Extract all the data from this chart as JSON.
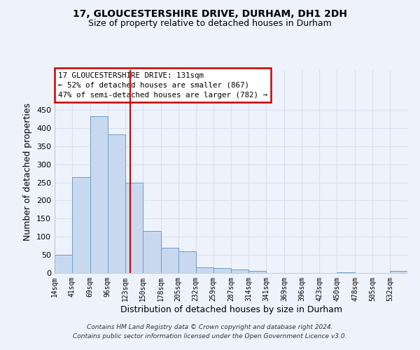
{
  "title1": "17, GLOUCESTERSHIRE DRIVE, DURHAM, DH1 2DH",
  "title2": "Size of property relative to detached houses in Durham",
  "xlabel": "Distribution of detached houses by size in Durham",
  "ylabel": "Number of detached properties",
  "annotation_lines": [
    "17 GLOUCESTERSHIRE DRIVE: 131sqm",
    "← 52% of detached houses are smaller (867)",
    "47% of semi-detached houses are larger (782) →"
  ],
  "footnote1": "Contains HM Land Registry data © Crown copyright and database right 2024.",
  "footnote2": "Contains public sector information licensed under the Open Government Licence v3.0.",
  "bar_edges": [
    14,
    41,
    69,
    96,
    123,
    150,
    178,
    205,
    232,
    259,
    287,
    314,
    341,
    369,
    396,
    423,
    450,
    478,
    505,
    532,
    559
  ],
  "bar_heights": [
    50,
    265,
    432,
    383,
    250,
    115,
    70,
    60,
    15,
    13,
    9,
    6,
    0,
    0,
    0,
    0,
    1,
    0,
    0,
    5
  ],
  "bar_color": "#c8d9ef",
  "bar_edge_color": "#6a9ec8",
  "vline_x": 131,
  "vline_color": "#cc0000",
  "ylim": [
    0,
    560
  ],
  "yticks": [
    0,
    50,
    100,
    150,
    200,
    250,
    300,
    350,
    400,
    450
  ],
  "bg_color": "#eef2fb",
  "grid_color": "#d8dff0",
  "annotation_box_color": "#ffffff",
  "annotation_box_edge": "#cc0000"
}
